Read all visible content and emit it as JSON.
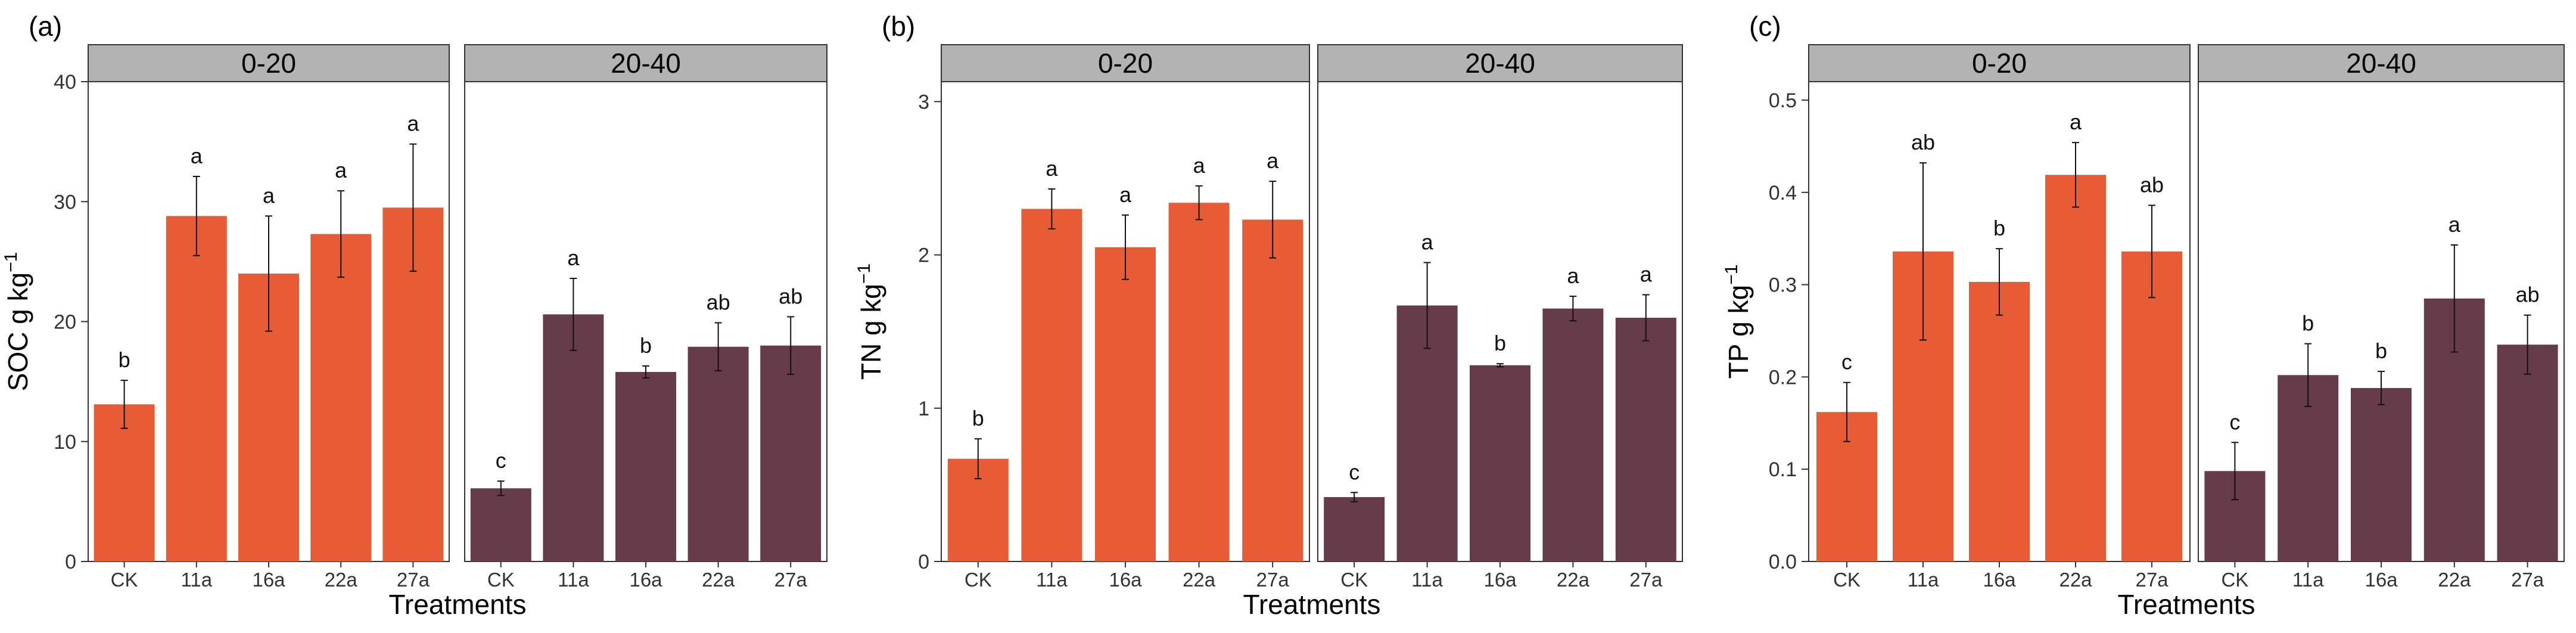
{
  "chart_data": [
    {
      "type": "bar",
      "panel_tag": "(a)",
      "facets": [
        "0-20",
        "20-40"
      ],
      "categories": [
        "CK",
        "11a",
        "16a",
        "22a",
        "27a"
      ],
      "xlabel": "Treatments",
      "ylabel": {
        "main": "SOC g kg",
        "sup": "−1"
      },
      "ylim": [
        0,
        40
      ],
      "yticks": [
        0,
        10,
        20,
        30,
        40
      ],
      "series": [
        {
          "name": "0-20",
          "color": "#E85C35",
          "values": [
            13.1,
            28.8,
            24.0,
            27.3,
            29.5
          ],
          "errors": [
            2.0,
            3.3,
            4.8,
            3.6,
            5.3
          ],
          "letters": [
            "b",
            "a",
            "a",
            "a",
            "a"
          ]
        },
        {
          "name": "20-40",
          "color": "#663B4A",
          "values": [
            6.1,
            20.6,
            15.8,
            17.9,
            18.0
          ],
          "errors": [
            0.6,
            3.0,
            0.5,
            2.0,
            2.4
          ],
          "letters": [
            "c",
            "a",
            "b",
            "ab",
            "ab"
          ]
        }
      ]
    },
    {
      "type": "bar",
      "panel_tag": "(b)",
      "facets": [
        "0-20",
        "20-40"
      ],
      "categories": [
        "CK",
        "11a",
        "16a",
        "22a",
        "27a"
      ],
      "xlabel": "Treatments",
      "ylabel": {
        "main": "TN g kg",
        "sup": "−1"
      },
      "ylim": [
        0,
        3.13
      ],
      "yticks": [
        0,
        1,
        2,
        3
      ],
      "series": [
        {
          "name": "0-20",
          "color": "#E85C35",
          "values": [
            0.67,
            2.3,
            2.05,
            2.34,
            2.23
          ],
          "errors": [
            0.13,
            0.13,
            0.21,
            0.11,
            0.25
          ],
          "letters": [
            "b",
            "a",
            "a",
            "a",
            "a"
          ]
        },
        {
          "name": "20-40",
          "color": "#663B4A",
          "values": [
            0.42,
            1.67,
            1.28,
            1.65,
            1.59
          ],
          "errors": [
            0.03,
            0.28,
            0.01,
            0.08,
            0.15
          ],
          "letters": [
            "c",
            "a",
            "b",
            "a",
            "a"
          ]
        }
      ]
    },
    {
      "type": "bar",
      "panel_tag": "(c)",
      "facets": [
        "0-20",
        "20-40"
      ],
      "categories": [
        "CK",
        "11a",
        "16a",
        "22a",
        "27a"
      ],
      "xlabel": "Treatments",
      "ylabel": {
        "main": "TP g kg",
        "sup": "−1"
      },
      "ylim": [
        0,
        0.52
      ],
      "yticks": [
        "0.0",
        "0.1",
        "0.2",
        "0.3",
        "0.4",
        "0.5"
      ],
      "series": [
        {
          "name": "0-20",
          "color": "#E85C35",
          "values": [
            0.162,
            0.336,
            0.303,
            0.419,
            0.336
          ],
          "errors": [
            0.032,
            0.096,
            0.036,
            0.035,
            0.05
          ],
          "letters": [
            "c",
            "ab",
            "b",
            "a",
            "ab"
          ]
        },
        {
          "name": "20-40",
          "color": "#663B4A",
          "values": [
            0.098,
            0.202,
            0.188,
            0.285,
            0.235
          ],
          "errors": [
            0.031,
            0.034,
            0.018,
            0.058,
            0.032
          ],
          "letters": [
            "c",
            "b",
            "b",
            "a",
            "ab"
          ]
        }
      ]
    }
  ]
}
